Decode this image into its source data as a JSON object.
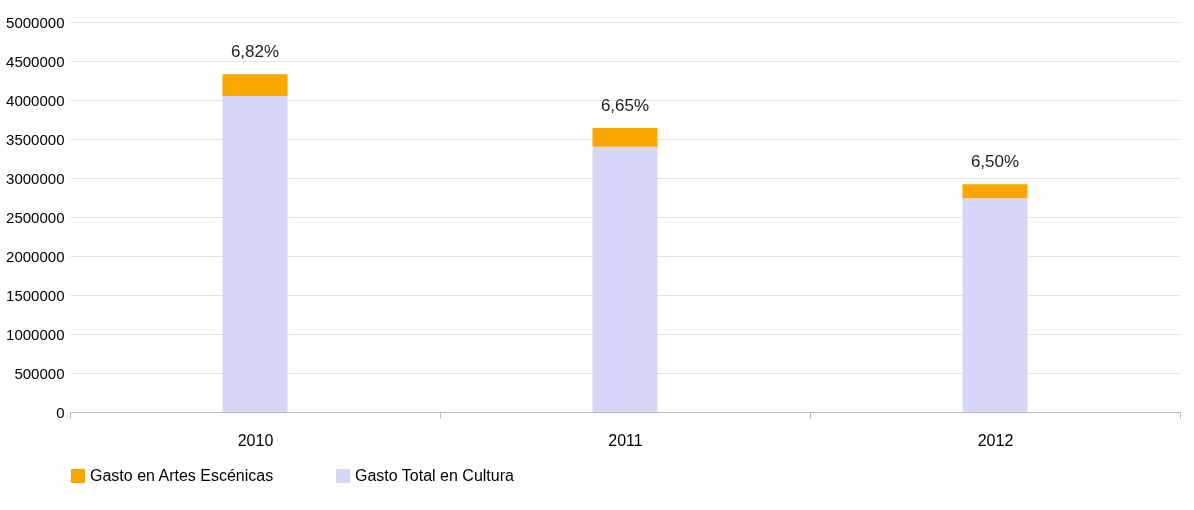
{
  "chart_data": {
    "type": "bar",
    "stacked": true,
    "categories": [
      "2010",
      "2011",
      "2012"
    ],
    "series": [
      {
        "name": "Gasto Total en Cultura",
        "color": "#d6d6fa",
        "values": [
          4050000,
          3400000,
          2740000
        ]
      },
      {
        "name": "Gasto en Artes Escénicas",
        "color": "#f9a602",
        "values": [
          280000,
          240000,
          180000
        ]
      }
    ],
    "ylim": [
      0,
      5000000
    ],
    "yticks": [
      0,
      500000,
      1000000,
      1500000,
      2000000,
      2500000,
      3000000,
      3500000,
      4000000,
      4500000,
      5000000
    ],
    "grid": "y",
    "legend": "bottom",
    "annotations": [
      {
        "text": "6,82%",
        "x": "2010",
        "y": 4330000
      },
      {
        "text": "6,65%",
        "x": "2011",
        "y": 3640000
      },
      {
        "text": "6,50%",
        "x": "2012",
        "y": 2920000
      }
    ]
  }
}
